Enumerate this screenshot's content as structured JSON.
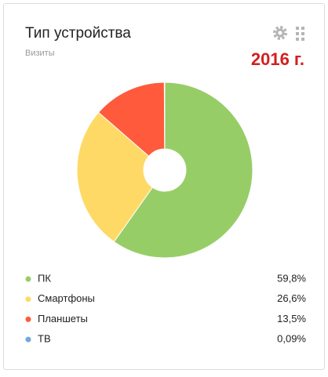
{
  "chart_data": {
    "type": "donut",
    "title": "Тип устройства",
    "subtitle": "Визиты",
    "annotation": "2016 г.",
    "categories": [
      "ПК",
      "Смартфоны",
      "Планшеты",
      "ТВ"
    ],
    "values": [
      59.8,
      26.6,
      13.5,
      0.09
    ],
    "value_labels": [
      "59,8%",
      "26,6%",
      "13,5%",
      "0,09%"
    ],
    "colors": [
      "#97cd67",
      "#ffd966",
      "#ff5a3c",
      "#6fa8dc"
    ]
  }
}
